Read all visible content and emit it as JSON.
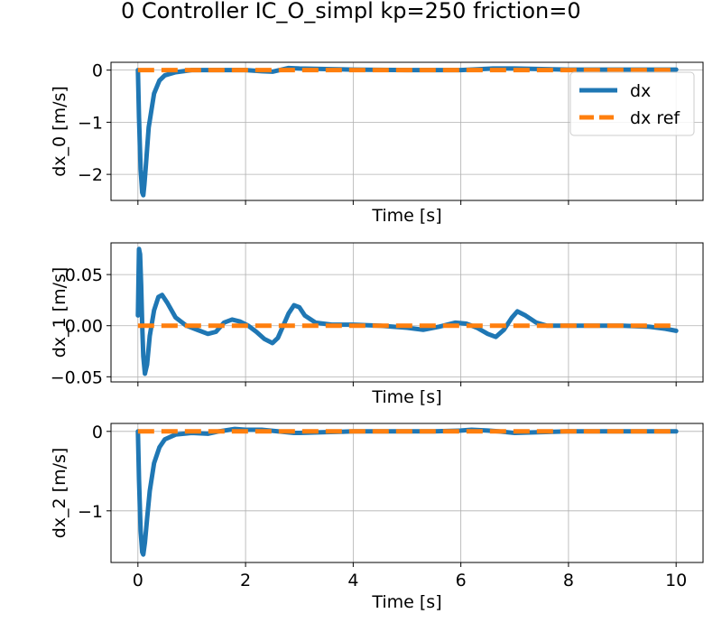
{
  "title": "0 Controller IC_O_simpl kp=250 friction=0",
  "colors": {
    "dx": "#1f77b4",
    "dx_ref": "#ff7f0e",
    "grid": "#b0b0b0"
  },
  "chart_data": [
    {
      "type": "line",
      "xlabel": "Time [s]",
      "ylabel": "dx_0 [m/s]",
      "xlim": [
        -0.5,
        10.5
      ],
      "ylim": [
        -2.5,
        0.15
      ],
      "xticks": [
        0,
        2,
        4,
        6,
        8,
        10
      ],
      "yticks": [
        0,
        -1,
        -2
      ],
      "ytick_labels": [
        "0",
        "−1",
        "−2"
      ],
      "show_xtick_labels": false,
      "grid": true,
      "legend": {
        "position": "top-right",
        "entries": [
          "dx",
          "dx ref"
        ]
      },
      "series": [
        {
          "name": "dx",
          "x": [
            0,
            0.02,
            0.05,
            0.08,
            0.1,
            0.12,
            0.15,
            0.2,
            0.3,
            0.4,
            0.5,
            0.7,
            1.0,
            1.5,
            2.0,
            2.3,
            2.5,
            2.8,
            3.0,
            3.5,
            4.0,
            5.0,
            6.0,
            6.6,
            7.0,
            7.5,
            8.0,
            9.0,
            10.0
          ],
          "y": [
            0,
            -0.9,
            -1.9,
            -2.35,
            -2.4,
            -2.2,
            -1.8,
            -1.1,
            -0.45,
            -0.2,
            -0.1,
            -0.04,
            0,
            0,
            0,
            -0.02,
            -0.03,
            0.04,
            0.03,
            0.02,
            0.01,
            0,
            0,
            0.03,
            0.03,
            0.02,
            0.01,
            0.01,
            0.01
          ]
        },
        {
          "name": "dx ref",
          "x": [
            0,
            10
          ],
          "y": [
            0,
            0
          ]
        }
      ]
    },
    {
      "type": "line",
      "xlabel": "Time [s]",
      "ylabel": "dx_1 [m/s]",
      "xlim": [
        -0.5,
        10.5
      ],
      "ylim": [
        -0.055,
        0.081
      ],
      "xticks": [
        0,
        2,
        4,
        6,
        8,
        10
      ],
      "yticks": [
        0.05,
        0,
        -0.05
      ],
      "ytick_labels": [
        "0.05",
        "0.00",
        "−0.05"
      ],
      "show_xtick_labels": false,
      "grid": true,
      "series": [
        {
          "name": "dx",
          "x": [
            0,
            0.02,
            0.04,
            0.06,
            0.08,
            0.1,
            0.13,
            0.17,
            0.22,
            0.3,
            0.38,
            0.45,
            0.55,
            0.7,
            0.9,
            1.1,
            1.3,
            1.45,
            1.6,
            1.75,
            1.9,
            2.05,
            2.2,
            2.35,
            2.5,
            2.6,
            2.7,
            2.8,
            2.9,
            3.0,
            3.1,
            3.3,
            3.6,
            4.0,
            4.5,
            5.0,
            5.3,
            5.6,
            5.9,
            6.1,
            6.3,
            6.5,
            6.65,
            6.8,
            6.95,
            7.05,
            7.2,
            7.4,
            7.6,
            8.0,
            8.5,
            9.0,
            9.5,
            9.8,
            10.0
          ],
          "y": [
            0.01,
            0.075,
            0.07,
            0.04,
            0.0,
            -0.03,
            -0.047,
            -0.038,
            -0.01,
            0.015,
            0.028,
            0.03,
            0.022,
            0.008,
            0.0,
            -0.004,
            -0.008,
            -0.006,
            0.003,
            0.006,
            0.004,
            0.0,
            -0.006,
            -0.013,
            -0.017,
            -0.012,
            0.0,
            0.012,
            0.02,
            0.018,
            0.01,
            0.003,
            0.001,
            0.001,
            0.0,
            -0.002,
            -0.004,
            -0.001,
            0.003,
            0.002,
            -0.002,
            -0.008,
            -0.011,
            -0.004,
            0.008,
            0.014,
            0.01,
            0.003,
            0.0,
            0.0,
            0.0,
            0.0,
            -0.001,
            -0.003,
            -0.005
          ]
        },
        {
          "name": "dx ref",
          "x": [
            0,
            10
          ],
          "y": [
            0,
            0
          ]
        }
      ]
    },
    {
      "type": "line",
      "xlabel": "Time [s]",
      "ylabel": "dx_2 [m/s]",
      "xlim": [
        -0.5,
        10.5
      ],
      "ylim": [
        -1.65,
        0.1
      ],
      "xticks": [
        0,
        2,
        4,
        6,
        8,
        10
      ],
      "xtick_labels": [
        "0",
        "2",
        "4",
        "6",
        "8",
        "10"
      ],
      "yticks": [
        0,
        -1
      ],
      "ytick_labels": [
        "0",
        "−1"
      ],
      "show_xtick_labels": true,
      "grid": true,
      "series": [
        {
          "name": "dx",
          "x": [
            0,
            0.02,
            0.05,
            0.08,
            0.1,
            0.13,
            0.17,
            0.22,
            0.3,
            0.4,
            0.5,
            0.7,
            1.0,
            1.3,
            1.5,
            1.8,
            2.0,
            2.3,
            2.6,
            2.9,
            3.0,
            3.5,
            4.0,
            5.0,
            5.5,
            6.0,
            6.2,
            6.5,
            6.7,
            7.0,
            7.5,
            8.0,
            9.0,
            10.0
          ],
          "y": [
            0,
            -0.6,
            -1.25,
            -1.52,
            -1.55,
            -1.4,
            -1.1,
            -0.75,
            -0.4,
            -0.2,
            -0.1,
            -0.04,
            -0.02,
            -0.03,
            0.0,
            0.03,
            0.02,
            0.02,
            0.0,
            -0.02,
            -0.02,
            -0.01,
            0.0,
            0.0,
            0.0,
            0.01,
            0.02,
            0.01,
            0.0,
            -0.02,
            -0.01,
            0.0,
            0.0,
            0.0
          ]
        },
        {
          "name": "dx ref",
          "x": [
            0,
            10
          ],
          "y": [
            0,
            0
          ]
        }
      ]
    }
  ]
}
